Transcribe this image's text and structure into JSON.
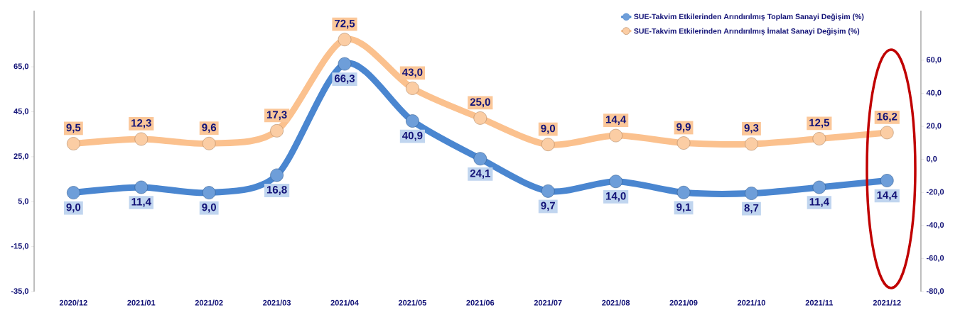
{
  "chart_data": {
    "type": "line",
    "categories": [
      "2020/12",
      "2021/01",
      "2021/02",
      "2021/03",
      "2021/04",
      "2021/05",
      "2021/06",
      "2021/07",
      "2021/08",
      "2021/09",
      "2021/10",
      "2021/11",
      "2021/12"
    ],
    "series": [
      {
        "name": "SUE-Takvim Etkilerinden Arındırılmış Toplam Sanayi Değişim (%)",
        "color": "#4a86d0",
        "values": [
          9.0,
          11.4,
          9.0,
          16.8,
          66.3,
          40.9,
          24.1,
          9.7,
          14.0,
          9.1,
          8.7,
          11.4,
          14.4
        ],
        "value_labels": [
          "9,0",
          "11,4",
          "9,0",
          "16,8",
          "66,3",
          "40,9",
          "24,1",
          "9,7",
          "14,0",
          "9,1",
          "8,7",
          "11,4",
          "14,4"
        ]
      },
      {
        "name": "SUE-Takvim Etkilerinden Arındırılmış İmalat Sanayi Değişim (%)",
        "color": "#fbc18e",
        "axis": "y2",
        "values": [
          9.5,
          12.3,
          9.6,
          17.3,
          72.5,
          43.0,
          25.0,
          9.0,
          14.4,
          9.9,
          9.3,
          12.5,
          16.2
        ],
        "value_labels": [
          "9,5",
          "12,3",
          "9,6",
          "17,3",
          "72,5",
          "43,0",
          "25,0",
          "9,0",
          "14,4",
          "9,9",
          "9,3",
          "12,5",
          "16,2"
        ]
      }
    ],
    "ylim": [
      -35,
      90
    ],
    "yticks": [
      {
        "value": -35,
        "label": "-35,0"
      },
      {
        "value": -15,
        "label": "-15,0"
      },
      {
        "value": 5,
        "label": "5,0"
      },
      {
        "value": 25,
        "label": "25,0"
      },
      {
        "value": 45,
        "label": "45,0"
      },
      {
        "value": 65,
        "label": "65,0"
      }
    ],
    "y2lim": [
      -80,
      90
    ],
    "y2ticks": [
      {
        "value": -80,
        "label": "-80,0"
      },
      {
        "value": -60,
        "label": "-60,0"
      },
      {
        "value": -40,
        "label": "-40,0"
      },
      {
        "value": -20,
        "label": "-20,0"
      },
      {
        "value": 0,
        "label": "0,0"
      },
      {
        "value": 20,
        "label": "20,0"
      },
      {
        "value": 40,
        "label": "40,0"
      },
      {
        "value": 60,
        "label": "60,0"
      }
    ],
    "legend": "top right",
    "marker": "circle",
    "line_style": "solid",
    "grid": false
  }
}
